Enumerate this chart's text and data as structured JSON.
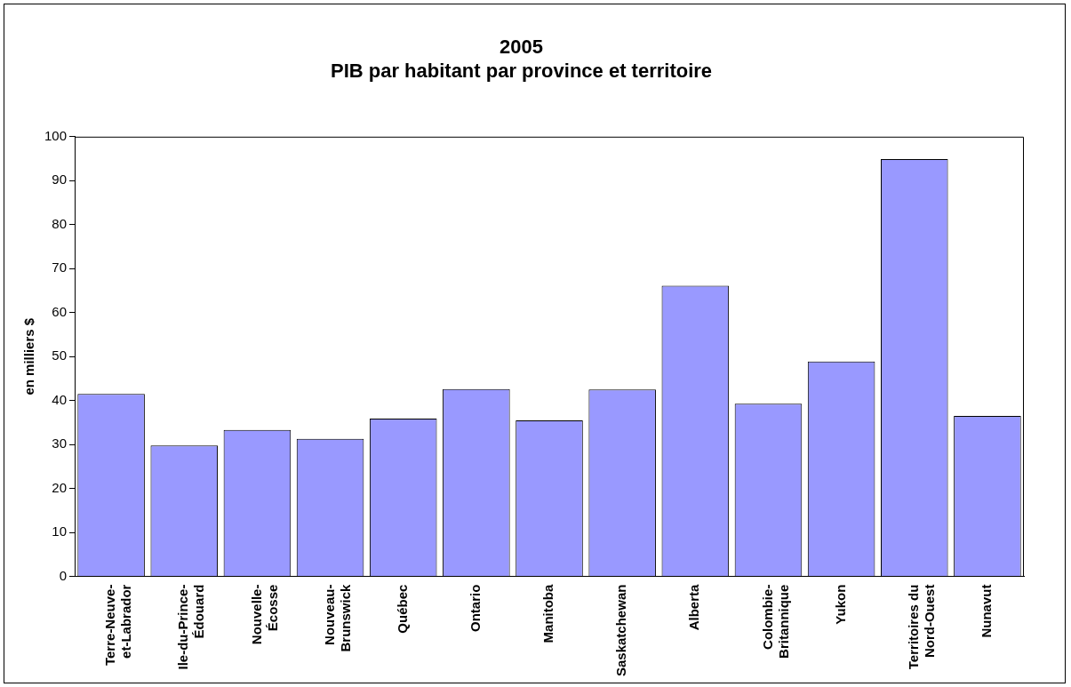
{
  "chart_data": {
    "type": "bar",
    "title": "2005\nPIB par habitant par province et territoire",
    "ylabel": "en milliers $",
    "categories": [
      "Terre-Neuve-\net-Labrador",
      "Ile-du-Prince-\nÉdouard",
      "Nouvelle-\nÉcosse",
      "Nouveau-\nBrunswick",
      "Québec",
      "Ontario",
      "Manitoba",
      "Saskatchewan",
      "Alberta",
      "Colombie-\nBritannique",
      "Yukon",
      "Territoires du\nNord-Ouest",
      "Nunavut"
    ],
    "values": [
      41.5,
      29.8,
      33.3,
      31.3,
      35.9,
      42.6,
      35.5,
      42.5,
      66.1,
      39.3,
      48.9,
      94.9,
      36.5
    ],
    "color": "#9999ff",
    "ylim": [
      0,
      100
    ],
    "yticks": [
      0,
      10,
      20,
      30,
      40,
      50,
      60,
      70,
      80,
      90,
      100
    ],
    "grid": false,
    "legend": false
  }
}
